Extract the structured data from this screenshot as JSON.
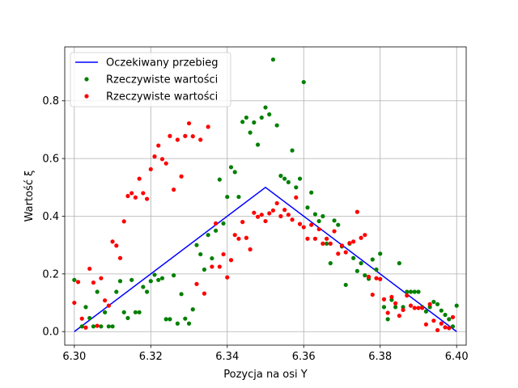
{
  "chart_data": {
    "type": "line+scatter",
    "title": "",
    "xlabel": "Pozycja na osi Y",
    "ylabel": "Wartość ξ",
    "xlim": [
      6.2975,
      6.4025
    ],
    "ylim": [
      -0.047,
      0.987
    ],
    "xticks": [
      6.3,
      6.32,
      6.34,
      6.36,
      6.38,
      6.4
    ],
    "xtick_labels": [
      "6.30",
      "6.32",
      "6.34",
      "6.36",
      "6.38",
      "6.40"
    ],
    "yticks": [
      0.0,
      0.2,
      0.4,
      0.6,
      0.8
    ],
    "ytick_labels": [
      "0.0",
      "0.2",
      "0.4",
      "0.6",
      "0.8"
    ],
    "grid": true,
    "legend_position": "top-left",
    "series": [
      {
        "name": "Oczekiwany przebieg",
        "kind": "line",
        "color": "#0000ff",
        "x": [
          6.3,
          6.35,
          6.4
        ],
        "y": [
          0.0,
          0.5,
          0.0
        ]
      },
      {
        "name": "Rzeczywiste wartości",
        "kind": "scatter",
        "color": "#008000",
        "points": [
          [
            6.3,
            0.179
          ],
          [
            6.302,
            0.018
          ],
          [
            6.303,
            0.085
          ],
          [
            6.304,
            0.047
          ],
          [
            6.305,
            0.018
          ],
          [
            6.306,
            0.138
          ],
          [
            6.307,
            0.018
          ],
          [
            6.308,
            0.067
          ],
          [
            6.309,
            0.018
          ],
          [
            6.31,
            0.018
          ],
          [
            6.311,
            0.138
          ],
          [
            6.312,
            0.175
          ],
          [
            6.313,
            0.067
          ],
          [
            6.314,
            0.047
          ],
          [
            6.315,
            0.179
          ],
          [
            6.316,
            0.067
          ],
          [
            6.317,
            0.067
          ],
          [
            6.318,
            0.155
          ],
          [
            6.319,
            0.138
          ],
          [
            6.32,
            0.175
          ],
          [
            6.321,
            0.197
          ],
          [
            6.322,
            0.179
          ],
          [
            6.323,
            0.185
          ],
          [
            6.324,
            0.043
          ],
          [
            6.325,
            0.043
          ],
          [
            6.326,
            0.195
          ],
          [
            6.327,
            0.028
          ],
          [
            6.328,
            0.13
          ],
          [
            6.329,
            0.045
          ],
          [
            6.33,
            0.028
          ],
          [
            6.331,
            0.077
          ],
          [
            6.332,
            0.3
          ],
          [
            6.333,
            0.268
          ],
          [
            6.334,
            0.215
          ],
          [
            6.335,
            0.335
          ],
          [
            6.336,
            0.254
          ],
          [
            6.337,
            0.35
          ],
          [
            6.338,
            0.527
          ],
          [
            6.339,
            0.375
          ],
          [
            6.34,
            0.467
          ],
          [
            6.341,
            0.57
          ],
          [
            6.342,
            0.553
          ],
          [
            6.343,
            0.467
          ],
          [
            6.344,
            0.727
          ],
          [
            6.345,
            0.742
          ],
          [
            6.346,
            0.69
          ],
          [
            6.347,
            0.725
          ],
          [
            6.348,
            0.648
          ],
          [
            6.349,
            0.742
          ],
          [
            6.35,
            0.777
          ],
          [
            6.351,
            0.753
          ],
          [
            6.352,
            0.943
          ],
          [
            6.353,
            0.715
          ],
          [
            6.354,
            0.54
          ],
          [
            6.355,
            0.53
          ],
          [
            6.356,
            0.518
          ],
          [
            6.357,
            0.628
          ],
          [
            6.358,
            0.5
          ],
          [
            6.359,
            0.53
          ],
          [
            6.36,
            0.865
          ],
          [
            6.361,
            0.43
          ],
          [
            6.362,
            0.482
          ],
          [
            6.363,
            0.407
          ],
          [
            6.364,
            0.383
          ],
          [
            6.365,
            0.4
          ],
          [
            6.366,
            0.305
          ],
          [
            6.367,
            0.237
          ],
          [
            6.368,
            0.385
          ],
          [
            6.369,
            0.37
          ],
          [
            6.37,
            0.295
          ],
          [
            6.371,
            0.162
          ],
          [
            6.372,
            0.305
          ],
          [
            6.373,
            0.255
          ],
          [
            6.374,
            0.21
          ],
          [
            6.375,
            0.237
          ],
          [
            6.376,
            0.195
          ],
          [
            6.377,
            0.183
          ],
          [
            6.378,
            0.25
          ],
          [
            6.379,
            0.215
          ],
          [
            6.38,
            0.27
          ],
          [
            6.381,
            0.085
          ],
          [
            6.382,
            0.043
          ],
          [
            6.383,
            0.11
          ],
          [
            6.384,
            0.085
          ],
          [
            6.385,
            0.237
          ],
          [
            6.386,
            0.085
          ],
          [
            6.387,
            0.138
          ],
          [
            6.388,
            0.138
          ],
          [
            6.389,
            0.138
          ],
          [
            6.39,
            0.138
          ],
          [
            6.391,
            0.085
          ],
          [
            6.392,
            0.07
          ],
          [
            6.393,
            0.085
          ],
          [
            6.394,
            0.103
          ],
          [
            6.395,
            0.095
          ],
          [
            6.396,
            0.073
          ],
          [
            6.397,
            0.058
          ],
          [
            6.398,
            0.043
          ],
          [
            6.399,
            0.018
          ],
          [
            6.4,
            0.09
          ]
        ]
      },
      {
        "name": "Rzeczywiste wartości",
        "kind": "scatter",
        "color": "#ff0000",
        "points": [
          [
            6.3,
            0.1
          ],
          [
            6.301,
            0.172
          ],
          [
            6.302,
            0.045
          ],
          [
            6.303,
            0.014
          ],
          [
            6.304,
            0.218
          ],
          [
            6.305,
            0.17
          ],
          [
            6.306,
            0.02
          ],
          [
            6.307,
            0.185
          ],
          [
            6.308,
            0.108
          ],
          [
            6.309,
            0.09
          ],
          [
            6.31,
            0.312
          ],
          [
            6.311,
            0.298
          ],
          [
            6.312,
            0.255
          ],
          [
            6.313,
            0.382
          ],
          [
            6.314,
            0.47
          ],
          [
            6.315,
            0.48
          ],
          [
            6.316,
            0.465
          ],
          [
            6.317,
            0.53
          ],
          [
            6.318,
            0.48
          ],
          [
            6.319,
            0.46
          ],
          [
            6.32,
            0.563
          ],
          [
            6.321,
            0.607
          ],
          [
            6.322,
            0.645
          ],
          [
            6.323,
            0.598
          ],
          [
            6.324,
            0.583
          ],
          [
            6.325,
            0.678
          ],
          [
            6.326,
            0.492
          ],
          [
            6.327,
            0.665
          ],
          [
            6.328,
            0.538
          ],
          [
            6.329,
            0.678
          ],
          [
            6.33,
            0.722
          ],
          [
            6.331,
            0.677
          ],
          [
            6.332,
            0.165
          ],
          [
            6.333,
            0.665
          ],
          [
            6.334,
            0.132
          ],
          [
            6.335,
            0.71
          ],
          [
            6.336,
            0.225
          ],
          [
            6.337,
            0.375
          ],
          [
            6.338,
            0.225
          ],
          [
            6.339,
            0.268
          ],
          [
            6.34,
            0.188
          ],
          [
            6.341,
            0.248
          ],
          [
            6.342,
            0.335
          ],
          [
            6.343,
            0.322
          ],
          [
            6.344,
            0.38
          ],
          [
            6.345,
            0.325
          ],
          [
            6.346,
            0.285
          ],
          [
            6.347,
            0.412
          ],
          [
            6.348,
            0.398
          ],
          [
            6.349,
            0.405
          ],
          [
            6.35,
            0.383
          ],
          [
            6.351,
            0.41
          ],
          [
            6.352,
            0.42
          ],
          [
            6.353,
            0.445
          ],
          [
            6.354,
            0.4
          ],
          [
            6.355,
            0.422
          ],
          [
            6.356,
            0.405
          ],
          [
            6.357,
            0.388
          ],
          [
            6.358,
            0.465
          ],
          [
            6.359,
            0.373
          ],
          [
            6.36,
            0.362
          ],
          [
            6.361,
            0.322
          ],
          [
            6.362,
            0.37
          ],
          [
            6.363,
            0.322
          ],
          [
            6.364,
            0.355
          ],
          [
            6.365,
            0.305
          ],
          [
            6.366,
            0.322
          ],
          [
            6.367,
            0.305
          ],
          [
            6.368,
            0.348
          ],
          [
            6.369,
            0.27
          ],
          [
            6.37,
            0.298
          ],
          [
            6.371,
            0.275
          ],
          [
            6.372,
            0.307
          ],
          [
            6.373,
            0.312
          ],
          [
            6.374,
            0.415
          ],
          [
            6.375,
            0.325
          ],
          [
            6.376,
            0.335
          ],
          [
            6.377,
            0.19
          ],
          [
            6.378,
            0.128
          ],
          [
            6.379,
            0.185
          ],
          [
            6.38,
            0.182
          ],
          [
            6.381,
            0.112
          ],
          [
            6.382,
            0.065
          ],
          [
            6.383,
            0.12
          ],
          [
            6.384,
            0.098
          ],
          [
            6.385,
            0.055
          ],
          [
            6.386,
            0.075
          ],
          [
            6.387,
            0.125
          ],
          [
            6.388,
            0.09
          ],
          [
            6.389,
            0.082
          ],
          [
            6.39,
            0.082
          ],
          [
            6.391,
            0.082
          ],
          [
            6.392,
            0.025
          ],
          [
            6.393,
            0.095
          ],
          [
            6.394,
            0.038
          ],
          [
            6.395,
            0.005
          ],
          [
            6.396,
            0.028
          ],
          [
            6.397,
            0.015
          ],
          [
            6.398,
            0.012
          ],
          [
            6.399,
            0.05
          ]
        ]
      }
    ]
  }
}
